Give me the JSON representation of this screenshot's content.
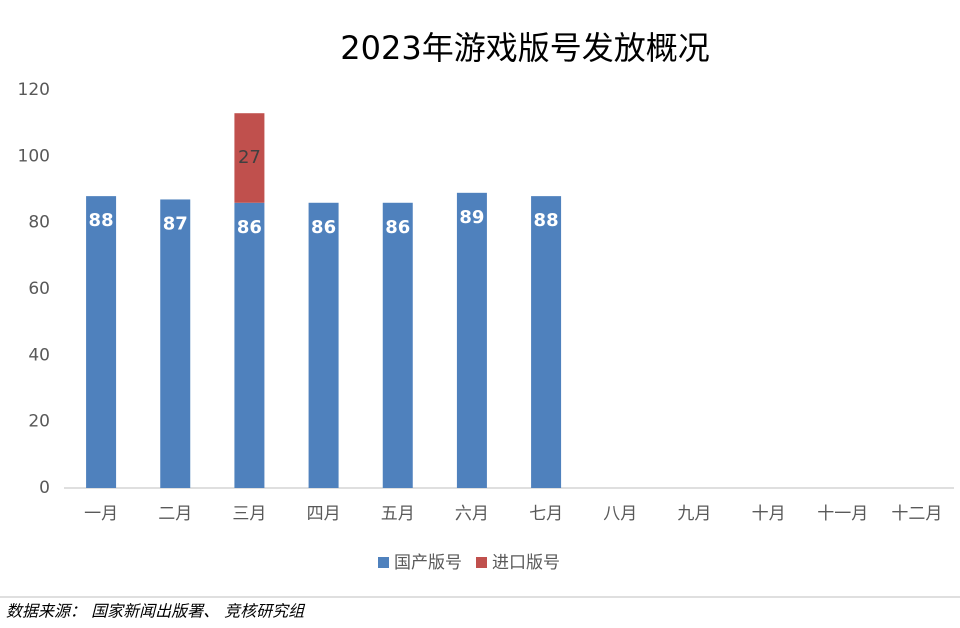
{
  "chart_data": {
    "type": "stacked_bar",
    "title": "2023年游戏版号发放概况",
    "categories": [
      "一月",
      "二月",
      "三月",
      "四月",
      "五月",
      "六月",
      "七月",
      "八月",
      "九月",
      "十月",
      "十一月",
      "十二月"
    ],
    "series": [
      {
        "name": "国产版号",
        "color": "#4f81bd",
        "values": [
          88,
          87,
          86,
          86,
          86,
          89,
          88,
          null,
          null,
          null,
          null,
          null
        ]
      },
      {
        "name": "进口版号",
        "color": "#c0504d",
        "values": [
          null,
          null,
          27,
          null,
          null,
          null,
          null,
          null,
          null,
          null,
          null,
          null
        ]
      }
    ],
    "ylim": [
      0,
      120
    ],
    "yticks": [
      0,
      20,
      40,
      60,
      80,
      100,
      120
    ],
    "grid": false,
    "legend": "bottom",
    "source": "数据来源： 国家新闻出版署、 竞核研究组"
  }
}
